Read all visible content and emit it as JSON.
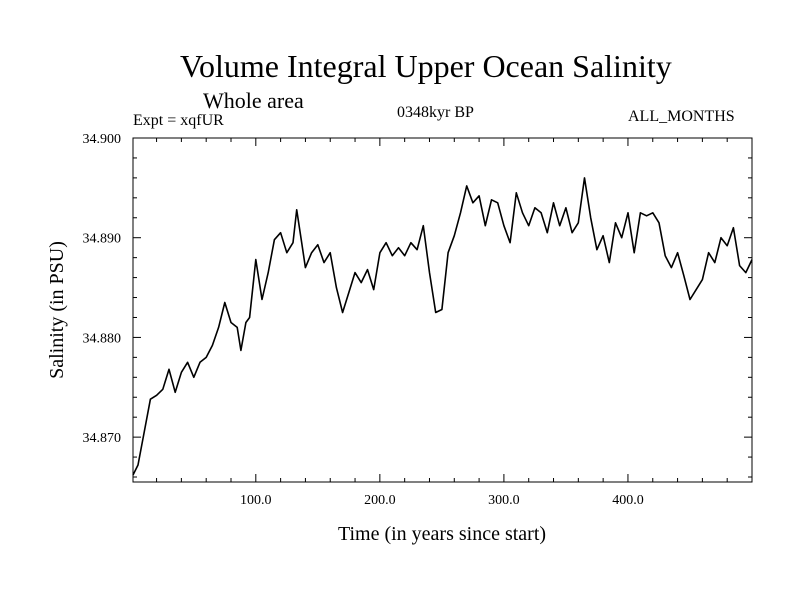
{
  "chart_data": {
    "type": "line",
    "title": "Volume Integral Upper Ocean Salinity",
    "subtitle": "Whole area",
    "expt_label": "Expt = xqfUR",
    "period_label": "0348kyr BP",
    "months_label": "ALL_MONTHS",
    "xlabel": "Time (in years since start)",
    "ylabel": "Salinity (in PSU)",
    "xlim": [
      1,
      500
    ],
    "ylim": [
      34.8655,
      34.9
    ],
    "x_ticks": [
      100.0,
      200.0,
      300.0,
      400.0
    ],
    "x_tick_labels": [
      "100.0",
      "200.0",
      "300.0",
      "400.0"
    ],
    "y_ticks": [
      34.87,
      34.88,
      34.89,
      34.9
    ],
    "y_tick_labels": [
      "34.870",
      "34.880",
      "34.890",
      "34.900"
    ],
    "grid": false,
    "series": [
      {
        "name": "salinity",
        "x": [
          1,
          5,
          10,
          15,
          20,
          25,
          30,
          35,
          40,
          45,
          50,
          55,
          60,
          65,
          70,
          75,
          80,
          85,
          88,
          92,
          95,
          100,
          105,
          110,
          115,
          120,
          125,
          130,
          133,
          137,
          140,
          145,
          150,
          155,
          160,
          165,
          170,
          175,
          180,
          185,
          190,
          195,
          200,
          205,
          210,
          215,
          220,
          225,
          230,
          235,
          240,
          245,
          250,
          255,
          260,
          265,
          270,
          275,
          280,
          285,
          290,
          295,
          300,
          305,
          310,
          315,
          320,
          325,
          330,
          335,
          340,
          345,
          350,
          355,
          360,
          365,
          370,
          375,
          380,
          385,
          390,
          395,
          400,
          405,
          410,
          415,
          420,
          425,
          430,
          435,
          440,
          445,
          450,
          455,
          460,
          465,
          470,
          475,
          480,
          485,
          490,
          495,
          500
        ],
        "values": [
          34.8662,
          34.8672,
          34.8705,
          34.8738,
          34.8742,
          34.8748,
          34.8768,
          34.8745,
          34.8765,
          34.8775,
          34.876,
          34.8775,
          34.878,
          34.8792,
          34.881,
          34.8835,
          34.8815,
          34.881,
          34.8787,
          34.8815,
          34.882,
          34.8878,
          34.8838,
          34.8865,
          34.8898,
          34.8905,
          34.8885,
          34.8895,
          34.8928,
          34.8895,
          34.887,
          34.8885,
          34.8893,
          34.8875,
          34.8885,
          34.885,
          34.8825,
          34.8845,
          34.8865,
          34.8855,
          34.8868,
          34.8848,
          34.8885,
          34.8895,
          34.8882,
          34.889,
          34.8882,
          34.8895,
          34.8888,
          34.8912,
          34.8865,
          34.8825,
          34.8828,
          34.8885,
          34.8902,
          34.8925,
          34.8952,
          34.8935,
          34.8942,
          34.8912,
          34.8938,
          34.8935,
          34.8912,
          34.8895,
          34.8945,
          34.8925,
          34.8912,
          34.893,
          34.8925,
          34.8905,
          34.8935,
          34.8912,
          34.893,
          34.8905,
          34.8915,
          34.896,
          34.892,
          34.8888,
          34.8902,
          34.8875,
          34.8915,
          34.89,
          34.8925,
          34.8885,
          34.8925,
          34.8922,
          34.8925,
          34.8915,
          34.8882,
          34.887,
          34.8885,
          34.8862,
          34.8838,
          34.8848,
          34.8858,
          34.8885,
          34.8875,
          34.89,
          34.8892,
          34.891,
          34.8872,
          34.8865,
          34.8878
        ]
      }
    ]
  }
}
